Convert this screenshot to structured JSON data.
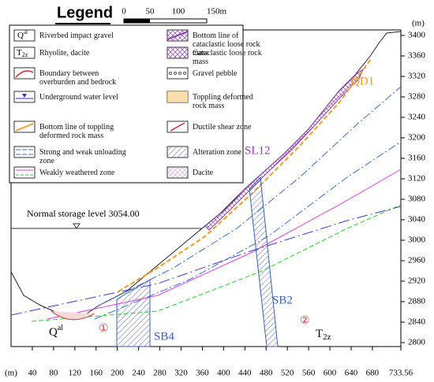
{
  "legend": {
    "title": "Legend",
    "scale": [
      "0",
      "50",
      "100",
      "150m"
    ],
    "items": [
      {
        "label": "Riverbed impact gravel",
        "symbol": {
          "base": "Q",
          "sup": "al"
        }
      },
      {
        "label": "Bottom line of cataclastic loose rock mass"
      },
      {
        "label": "Rhyolite, dacite",
        "symbol": {
          "base": "T",
          "sub": "2z"
        }
      },
      {
        "label": "Cataclastic loose rock mass"
      },
      {
        "label": "Boundary between overburden and bedrock"
      },
      {
        "label": "Gravel pebble"
      },
      {
        "label": "Underground water level"
      },
      {
        "label": "Toppling deformed rock mass"
      },
      {
        "label": "Bottom line of toppling deformed rock mass"
      },
      {
        "label": "Ductile shear zone"
      },
      {
        "label": "Strong and weak unloading zone"
      },
      {
        "label": "Alteration zone"
      },
      {
        "label": "Weakly weathered zone"
      },
      {
        "label": "Dacite"
      }
    ]
  },
  "profile": {
    "elevation_axis": {
      "unit": "(m)",
      "ticks": [
        3400,
        3360,
        3320,
        3280,
        3240,
        3200,
        3160,
        3120,
        3080,
        3040,
        3000,
        2960,
        2920,
        2880,
        2840,
        2800
      ]
    },
    "distance_axis": {
      "unit": "(m)",
      "ticks": [
        40,
        80,
        120,
        160,
        200,
        240,
        280,
        320,
        360,
        400,
        440,
        480,
        520,
        560,
        600,
        640,
        680,
        733.56
      ]
    },
    "storage_level": "Normal storage level 3054.00",
    "labels": {
      "qd1": "QD1",
      "sl12": "SL12",
      "sb2": "SB2",
      "sb4": "SB4",
      "zone1": "①",
      "zone2": "②",
      "qal": {
        "base": "Q",
        "sup": "al"
      },
      "t2z": {
        "base": "T",
        "sub": "2z"
      }
    }
  }
}
